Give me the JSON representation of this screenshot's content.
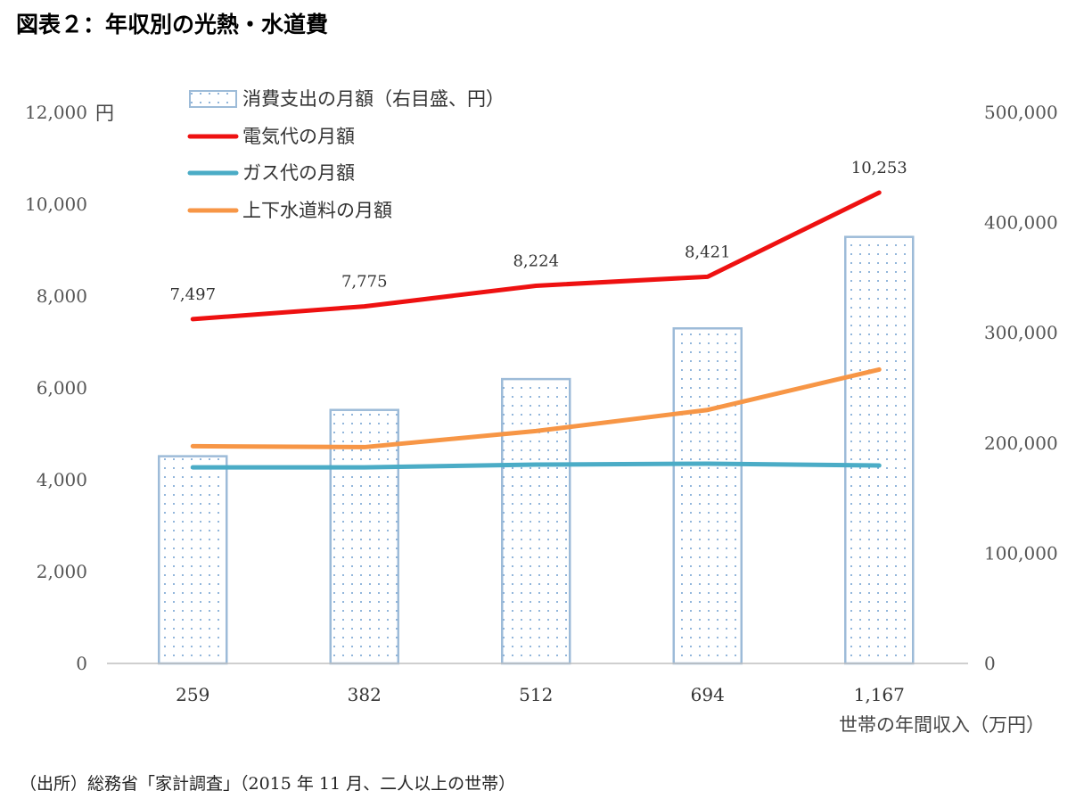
{
  "title": "図表２：年収別の光熱・水道費",
  "source": "（出所）総務省「家計調査」（2015 年 11 月、二人以上の世帯）",
  "chart_data": {
    "type": "bar+line",
    "categories": [
      "259",
      "382",
      "512",
      "694",
      "1,167"
    ],
    "xlabel": "世帯の年間収入（万円）",
    "left_axis": {
      "unit": "円",
      "ylim": [
        0,
        12000
      ],
      "ticks": [
        "0",
        "2,000",
        "4,000",
        "6,000",
        "8,000",
        "10,000",
        "12,000"
      ]
    },
    "right_axis": {
      "ylim": [
        0,
        500000
      ],
      "ticks": [
        "0",
        "100,000",
        "200,000",
        "300,000",
        "400,000",
        "500,000"
      ]
    },
    "series": [
      {
        "name": "消費支出の月額（右目盛、円）",
        "type": "bar",
        "axis": "right",
        "color": "#9dbbd8",
        "values": [
          188000,
          230000,
          258000,
          304000,
          387000
        ]
      },
      {
        "name": "電気代の月額",
        "type": "line",
        "axis": "left",
        "color": "#ee1111",
        "values": [
          7497,
          7775,
          8224,
          8421,
          10253
        ],
        "labels": [
          "7,497",
          "7,775",
          "8,224",
          "8,421",
          "10,253"
        ]
      },
      {
        "name": "ガス代の月額",
        "type": "line",
        "axis": "left",
        "color": "#4bacc6",
        "values": [
          4270,
          4270,
          4330,
          4350,
          4310
        ]
      },
      {
        "name": "上下水道料の月額",
        "type": "line",
        "axis": "left",
        "color": "#f79646",
        "values": [
          4730,
          4710,
          5060,
          5520,
          6400
        ]
      }
    ],
    "legend_position": "top-left",
    "grid": false
  }
}
